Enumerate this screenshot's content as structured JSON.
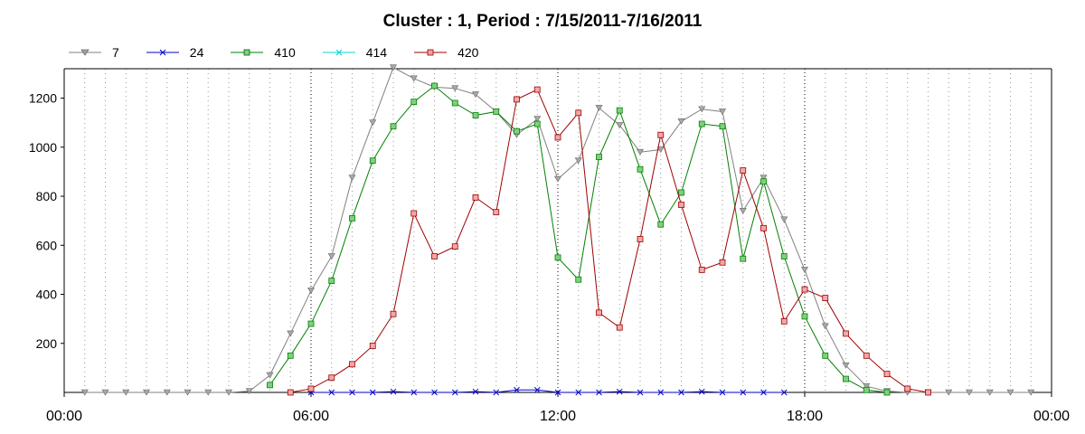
{
  "chart_data": {
    "type": "line",
    "title": "Cluster : 1, Period : 7/15/2011-7/16/2011",
    "xlabel": "",
    "ylabel": "",
    "xlim": [
      "00:00",
      "24:00"
    ],
    "ylim": [
      0,
      1320
    ],
    "x_ticks": [
      "00:00",
      "06:00",
      "12:00",
      "18:00",
      "00:00"
    ],
    "y_ticks": [
      200,
      400,
      600,
      800,
      1000,
      1200
    ],
    "grid": true,
    "legend_position": "top-left",
    "series": [
      {
        "name": "7",
        "color": "#808080",
        "marker": "triangle-down",
        "x": [
          "00:30",
          "01:00",
          "01:30",
          "02:00",
          "02:30",
          "03:00",
          "03:30",
          "04:00",
          "04:30",
          "05:00",
          "05:30",
          "06:00",
          "06:30",
          "07:00",
          "07:30",
          "08:00",
          "08:30",
          "09:00",
          "09:30",
          "10:00",
          "10:30",
          "11:00",
          "11:30",
          "12:00",
          "12:30",
          "13:00",
          "13:30",
          "14:00",
          "14:30",
          "15:00",
          "15:30",
          "16:00",
          "16:30",
          "17:00",
          "17:30",
          "18:00",
          "18:30",
          "19:00",
          "19:30",
          "20:00",
          "20:30",
          "21:00",
          "21:30",
          "22:00",
          "22:30",
          "23:00",
          "23:30"
        ],
        "y": [
          0,
          0,
          0,
          0,
          0,
          0,
          0,
          0,
          5,
          70,
          240,
          415,
          555,
          875,
          1100,
          1325,
          1280,
          1245,
          1240,
          1215,
          1145,
          1050,
          1115,
          870,
          945,
          1160,
          1090,
          980,
          990,
          1105,
          1155,
          1145,
          740,
          875,
          705,
          500,
          270,
          110,
          25,
          5,
          0,
          0,
          0,
          0,
          0,
          0,
          0
        ]
      },
      {
        "name": "24",
        "color": "#0000cc",
        "marker": "x",
        "x": [
          "06:00",
          "06:30",
          "07:00",
          "07:30",
          "08:00",
          "08:30",
          "09:00",
          "09:30",
          "10:00",
          "10:30",
          "11:00",
          "11:30",
          "12:00",
          "12:30",
          "13:00",
          "13:30",
          "14:00",
          "14:30",
          "15:00",
          "15:30",
          "16:00",
          "16:30",
          "17:00",
          "17:30"
        ],
        "y": [
          0,
          0,
          0,
          0,
          3,
          0,
          0,
          0,
          3,
          0,
          10,
          10,
          0,
          0,
          0,
          3,
          0,
          0,
          0,
          3,
          0,
          0,
          0,
          0
        ]
      },
      {
        "name": "410",
        "color": "#008000",
        "marker": "square",
        "x": [
          "05:00",
          "05:30",
          "06:00",
          "06:30",
          "07:00",
          "07:30",
          "08:00",
          "08:30",
          "09:00",
          "09:30",
          "10:00",
          "10:30",
          "11:00",
          "11:30",
          "12:00",
          "12:30",
          "13:00",
          "13:30",
          "14:00",
          "14:30",
          "15:00",
          "15:30",
          "16:00",
          "16:30",
          "17:00",
          "17:30",
          "18:00",
          "18:30",
          "19:00",
          "19:30",
          "20:00"
        ],
        "y": [
          30,
          150,
          280,
          455,
          710,
          945,
          1085,
          1185,
          1250,
          1180,
          1130,
          1145,
          1065,
          1095,
          550,
          460,
          960,
          1150,
          910,
          685,
          815,
          1095,
          1085,
          545,
          860,
          555,
          310,
          150,
          55,
          10,
          0
        ]
      },
      {
        "name": "414",
        "color": "#00d8d8",
        "marker": "x",
        "x": [],
        "y": []
      },
      {
        "name": "420",
        "color": "#a00000",
        "marker": "square",
        "x": [
          "05:30",
          "06:00",
          "06:30",
          "07:00",
          "07:30",
          "08:00",
          "08:30",
          "09:00",
          "09:30",
          "10:00",
          "10:30",
          "11:00",
          "11:30",
          "12:00",
          "12:30",
          "13:00",
          "13:30",
          "14:00",
          "14:30",
          "15:00",
          "15:30",
          "16:00",
          "16:30",
          "17:00",
          "17:30",
          "18:00",
          "18:30",
          "19:00",
          "19:30",
          "20:00",
          "20:30",
          "21:00"
        ],
        "y": [
          0,
          15,
          60,
          115,
          190,
          320,
          730,
          555,
          595,
          795,
          735,
          1195,
          1235,
          1040,
          1140,
          325,
          265,
          625,
          1050,
          765,
          500,
          530,
          905,
          670,
          290,
          420,
          385,
          240,
          150,
          75,
          15,
          0
        ]
      }
    ]
  }
}
